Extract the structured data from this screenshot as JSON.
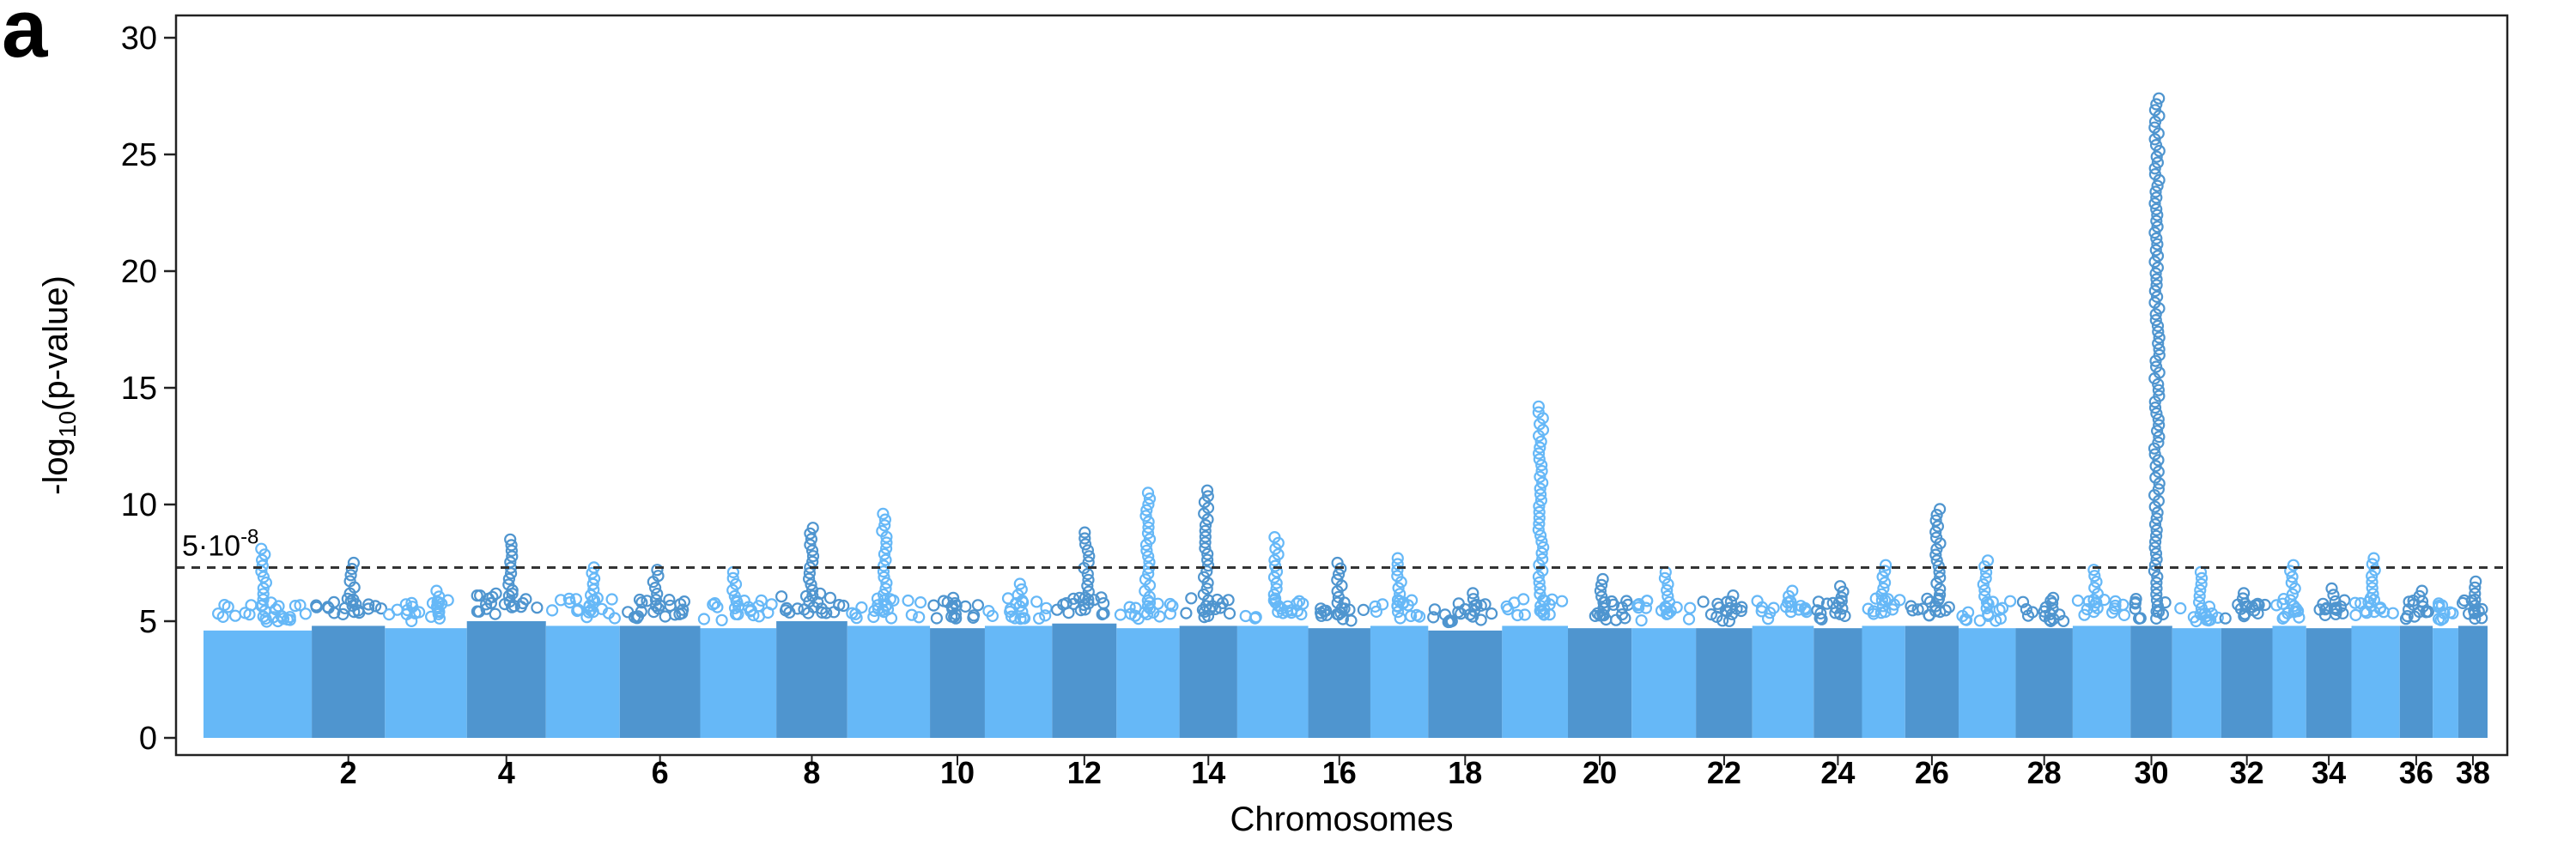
{
  "panel_label": "a",
  "chart_data": {
    "type": "scatter",
    "subtype": "manhattan",
    "title": "",
    "xlabel": "Chromosomes",
    "ylabel": "-log10(p-value)",
    "ylabel_parts": {
      "prefix": "-log",
      "subscript": "10",
      "suffix": "(p-value)"
    },
    "ylim": [
      0,
      30
    ],
    "yticks": [
      0,
      5,
      10,
      15,
      20,
      25,
      30
    ],
    "xtick_labels": [
      "2",
      "4",
      "6",
      "8",
      "10",
      "12",
      "14",
      "16",
      "18",
      "20",
      "22",
      "24",
      "26",
      "28",
      "30",
      "32",
      "34",
      "36",
      "38"
    ],
    "threshold": {
      "value": 7.3,
      "label_mantissa": "5·10",
      "label_exponent": "-8",
      "style": "dashed"
    },
    "colors": {
      "light": "#66b8f7",
      "dark": "#4f95cf",
      "threshold": "#333333",
      "axis": "#222222"
    },
    "chromosomes": [
      {
        "chr": 1,
        "base": 5.2,
        "peak": 8.1
      },
      {
        "chr": 2,
        "base": 5.4,
        "peak": 7.5
      },
      {
        "chr": 3,
        "base": 5.3,
        "peak": 6.3
      },
      {
        "chr": 4,
        "base": 5.6,
        "peak": 8.5
      },
      {
        "chr": 5,
        "base": 5.4,
        "peak": 7.3
      },
      {
        "chr": 6,
        "base": 5.4,
        "peak": 7.2
      },
      {
        "chr": 7,
        "base": 5.3,
        "peak": 7.1
      },
      {
        "chr": 8,
        "base": 5.6,
        "peak": 9.0
      },
      {
        "chr": 9,
        "base": 5.4,
        "peak": 9.6
      },
      {
        "chr": 10,
        "base": 5.3,
        "peak": 6.0
      },
      {
        "chr": 11,
        "base": 5.4,
        "peak": 6.6
      },
      {
        "chr": 12,
        "base": 5.5,
        "peak": 8.8
      },
      {
        "chr": 13,
        "base": 5.3,
        "peak": 10.5
      },
      {
        "chr": 14,
        "base": 5.4,
        "peak": 10.6
      },
      {
        "chr": 15,
        "base": 5.4,
        "peak": 8.6
      },
      {
        "chr": 16,
        "base": 5.3,
        "peak": 7.5
      },
      {
        "chr": 17,
        "base": 5.4,
        "peak": 7.7
      },
      {
        "chr": 18,
        "base": 5.2,
        "peak": 6.2
      },
      {
        "chr": 19,
        "base": 5.4,
        "peak": 14.2
      },
      {
        "chr": 20,
        "base": 5.3,
        "peak": 6.8
      },
      {
        "chr": 21,
        "base": 5.3,
        "peak": 7.1
      },
      {
        "chr": 22,
        "base": 5.3,
        "peak": 6.1
      },
      {
        "chr": 23,
        "base": 5.4,
        "peak": 6.3
      },
      {
        "chr": 24,
        "base": 5.3,
        "peak": 6.5
      },
      {
        "chr": 25,
        "base": 5.4,
        "peak": 7.4
      },
      {
        "chr": 26,
        "base": 5.4,
        "peak": 9.8
      },
      {
        "chr": 27,
        "base": 5.3,
        "peak": 7.6
      },
      {
        "chr": 28,
        "base": 5.3,
        "peak": 6.0
      },
      {
        "chr": 29,
        "base": 5.4,
        "peak": 7.2
      },
      {
        "chr": 30,
        "base": 5.4,
        "peak": 27.4
      },
      {
        "chr": 31,
        "base": 5.3,
        "peak": 7.1
      },
      {
        "chr": 32,
        "base": 5.3,
        "peak": 6.2
      },
      {
        "chr": 33,
        "base": 5.4,
        "peak": 7.4
      },
      {
        "chr": 34,
        "base": 5.3,
        "peak": 6.4
      },
      {
        "chr": 35,
        "base": 5.4,
        "peak": 7.7
      },
      {
        "chr": 36,
        "base": 5.4,
        "peak": 6.3
      },
      {
        "chr": 37,
        "base": 5.3,
        "peak": 5.3
      },
      {
        "chr": 38,
        "base": 5.4,
        "peak": 6.7
      }
    ]
  }
}
